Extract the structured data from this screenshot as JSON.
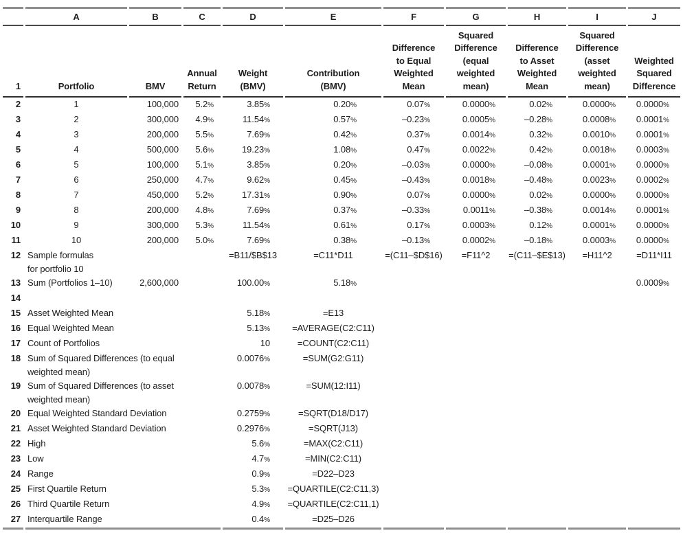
{
  "colors": {
    "text": "#1d1d1d",
    "heavy_rule": "#8f8f8f",
    "dark_rule": "#2e2e2e"
  },
  "table": {
    "columns": [
      "A",
      "B",
      "C",
      "D",
      "E",
      "F",
      "G",
      "H",
      "I",
      "J"
    ],
    "header_row_num": "1",
    "headers": {
      "a": "Portfolio",
      "b": "BMV",
      "c": "Annual\nReturn",
      "d": "Weight\n(BMV)",
      "e": "Contribution\n(BMV)",
      "f": "Difference\nto Equal\nWeighted\nMean",
      "g": "Squared\nDifference\n(equal\nweighted\nmean)",
      "h": "Difference\nto Asset\nWeighted\nMean",
      "i": "Squared\nDifference\n(asset\nweighted\nmean)",
      "j": "Weighted\nSquared\nDifference"
    },
    "rows": [
      {
        "num": "2",
        "a": "1",
        "b": "100,000",
        "c": "5.2%",
        "d": "3.85%",
        "e": "0.20%",
        "f": "0.07%",
        "g": "0.0000%",
        "h": "0.02%",
        "i": "0.0000%",
        "j": "0.0000%"
      },
      {
        "num": "3",
        "a": "2",
        "b": "300,000",
        "c": "4.9%",
        "d": "11.54%",
        "e": "0.57%",
        "f": "–0.23%",
        "g": "0.0005%",
        "h": "–0.28%",
        "i": "0.0008%",
        "j": "0.0001%"
      },
      {
        "num": "4",
        "a": "3",
        "b": "200,000",
        "c": "5.5%",
        "d": "7.69%",
        "e": "0.42%",
        "f": "0.37%",
        "g": "0.0014%",
        "h": "0.32%",
        "i": "0.0010%",
        "j": "0.0001%"
      },
      {
        "num": "5",
        "a": "4",
        "b": "500,000",
        "c": "5.6%",
        "d": "19.23%",
        "e": "1.08%",
        "f": "0.47%",
        "g": "0.0022%",
        "h": "0.42%",
        "i": "0.0018%",
        "j": "0.0003%"
      },
      {
        "num": "6",
        "a": "5",
        "b": "100,000",
        "c": "5.1%",
        "d": "3.85%",
        "e": "0.20%",
        "f": "–0.03%",
        "g": "0.0000%",
        "h": "–0.08%",
        "i": "0.0001%",
        "j": "0.0000%"
      },
      {
        "num": "7",
        "a": "6",
        "b": "250,000",
        "c": "4.7%",
        "d": "9.62%",
        "e": "0.45%",
        "f": "–0.43%",
        "g": "0.0018%",
        "h": "–0.48%",
        "i": "0.0023%",
        "j": "0.0002%"
      },
      {
        "num": "8",
        "a": "7",
        "b": "450,000",
        "c": "5.2%",
        "d": "17.31%",
        "e": "0.90%",
        "f": "0.07%",
        "g": "0.0000%",
        "h": "0.02%",
        "i": "0.0000%",
        "j": "0.0000%"
      },
      {
        "num": "9",
        "a": "8",
        "b": "200,000",
        "c": "4.8%",
        "d": "7.69%",
        "e": "0.37%",
        "f": "–0.33%",
        "g": "0.0011%",
        "h": "–0.38%",
        "i": "0.0014%",
        "j": "0.0001%"
      },
      {
        "num": "10",
        "a": "9",
        "b": "300,000",
        "c": "5.3%",
        "d": "11.54%",
        "e": "0.61%",
        "f": "0.17%",
        "g": "0.0003%",
        "h": "0.12%",
        "i": "0.0001%",
        "j": "0.0000%"
      },
      {
        "num": "11",
        "a": "10",
        "b": "200,000",
        "c": "5.0%",
        "d": "7.69%",
        "e": "0.38%",
        "f": "–0.13%",
        "g": "0.0002%",
        "h": "–0.18%",
        "i": "0.0003%",
        "j": "0.0000%"
      },
      {
        "num": "12",
        "tall": true,
        "label": "Sample formulas\nfor portfolio 10",
        "d": "=B11/$B$13",
        "e": "=C11*D11",
        "f": "=(C11–$D$16)",
        "g": "=F11^2",
        "h": "=(C11–$E$13)",
        "i": "=H11^2",
        "j": "=D11*I11"
      },
      {
        "num": "13",
        "label": "Sum (Portfolios 1–10)",
        "b": "2,600,000",
        "d": "100.00%",
        "e": "5.18%",
        "j": "0.0009%"
      },
      {
        "num": "14"
      },
      {
        "num": "15",
        "label": "Asset Weighted Mean",
        "d": "5.18%",
        "e": "=E13"
      },
      {
        "num": "16",
        "label": "Equal Weighted Mean",
        "d": "5.13%",
        "e": "=AVERAGE(C2:C11)"
      },
      {
        "num": "17",
        "label": "Count of Portfolios",
        "d": "10",
        "e": "=COUNT(C2:C11)"
      },
      {
        "num": "18",
        "tall": true,
        "label": "Sum of Squared Differences (to equal\nweighted mean)",
        "d": "0.0076%",
        "e": "=SUM(G2:G11)"
      },
      {
        "num": "19",
        "tall": true,
        "label": "Sum of Squared Differences (to asset\nweighted mean)",
        "d": "0.0078%",
        "e": "=SUM(12:I11)"
      },
      {
        "num": "20",
        "label": "Equal Weighted Standard Deviation",
        "d": "0.2759%",
        "e": "=SQRT(D18/D17)"
      },
      {
        "num": "21",
        "label": "Asset Weighted Standard Deviation",
        "d": "0.2976%",
        "e": "=SQRT(J13)"
      },
      {
        "num": "22",
        "label": "High",
        "d": "5.6%",
        "e": "=MAX(C2:C11)"
      },
      {
        "num": "23",
        "label": "Low",
        "d": "4.7%",
        "e": "=MIN(C2:C11)"
      },
      {
        "num": "24",
        "label": "Range",
        "d": "0.9%",
        "e": "=D22–D23"
      },
      {
        "num": "25",
        "label": "First Quartile Return",
        "d": "5.3%",
        "e": "=QUARTILE(C2:C11,3)"
      },
      {
        "num": "26",
        "label": "Third Quartile Return",
        "d": "4.9%",
        "e": "=QUARTILE(C2:C11,1)"
      },
      {
        "num": "27",
        "label": "Interquartile Range",
        "d": "0.4%",
        "e": "=D25–D26"
      }
    ]
  }
}
